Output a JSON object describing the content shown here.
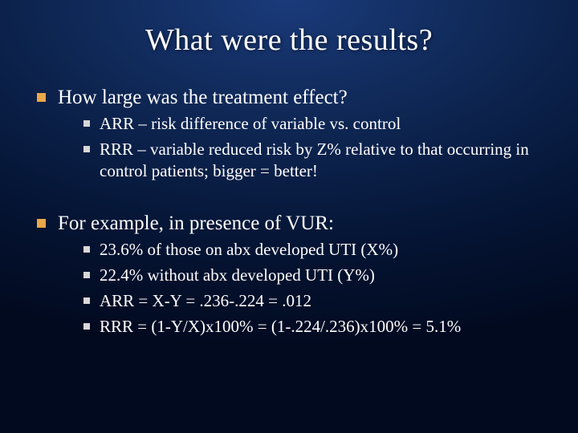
{
  "title": "What were the results?",
  "bullets": [
    {
      "text": "How large was the treatment effect?",
      "sub": [
        "ARR – risk difference of variable vs. control",
        "RRR – variable reduced risk by Z% relative to that occurring in control patients; bigger = better!"
      ]
    },
    {
      "text": "For example, in presence of VUR:",
      "sub": [
        "23.6% of those on abx developed UTI (X%)",
        "22.4% without abx developed UTI (Y%)",
        "ARR = X-Y = .236-.224 = .012",
        "RRR = (1-Y/X)x100% = (1-.224/.236)x100% = 5.1%"
      ]
    }
  ],
  "colors": {
    "bullet_l1": "#e8a84a",
    "bullet_l2": "#d8d8d8",
    "text": "#ffffff",
    "background_center": "#1a3a7a",
    "background_edge": "#020a20"
  },
  "typography": {
    "title_fontsize": 38,
    "l1_fontsize": 25,
    "l2_fontsize": 21,
    "font_family": "Garamond / Times serif"
  }
}
